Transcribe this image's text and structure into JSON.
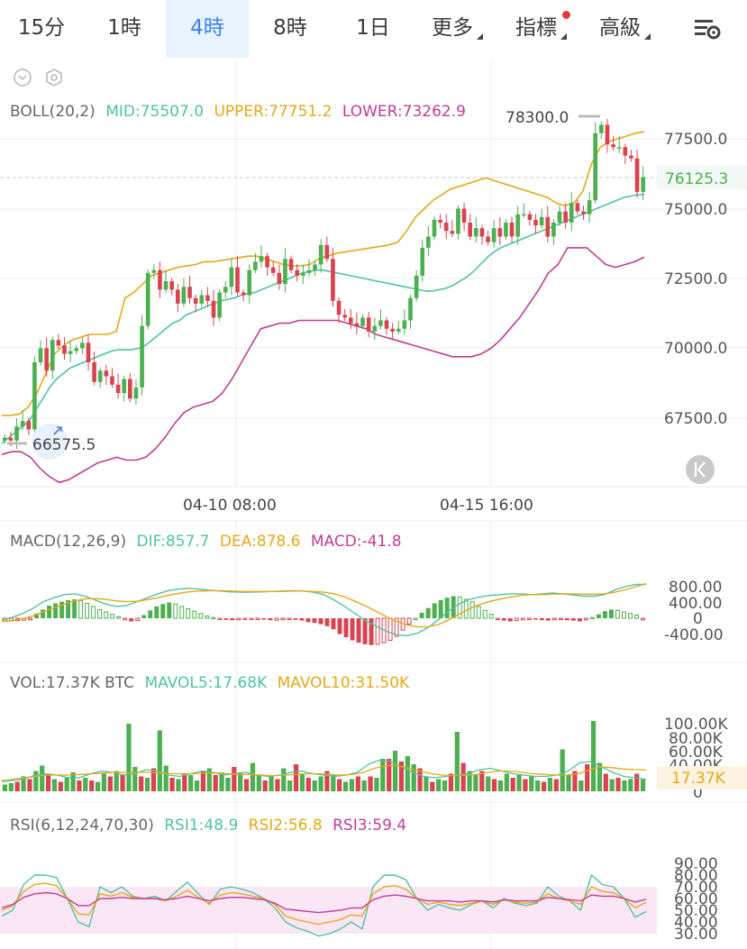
{
  "tabs": [
    {
      "label": "15分"
    },
    {
      "label": "1時"
    },
    {
      "label": "4時",
      "active": true
    },
    {
      "label": "8時"
    },
    {
      "label": "1日"
    },
    {
      "label": "更多"
    },
    {
      "label": "指標"
    },
    {
      "label": "高級"
    }
  ],
  "settings_icon": "chart-settings-icon",
  "toolbar_icons": [
    "chevron-down-icon",
    "hexagon-settings-icon"
  ],
  "boll": {
    "label": "BOLL(20,2)",
    "mid": "MID:75507.0",
    "upper": "UPPER:77751.2",
    "lower": "LOWER:73262.9"
  },
  "main_annotations": {
    "high": "78300.0",
    "low": "66575.5",
    "last": "76125.3"
  },
  "x_labels": [
    "04-10 08:00",
    "04-15 16:00"
  ],
  "macd": {
    "label": "MACD(12,26,9)",
    "dif": "DIF:857.7",
    "dea": "DEA:878.6",
    "macd": "MACD:-41.8"
  },
  "vol": {
    "label": "VOL:17.37K BTC",
    "mavol5": "MAVOL5:17.68K",
    "mavol10": "MAVOL10:31.50K",
    "last": "17.37K"
  },
  "rsi": {
    "label": "RSI(6,12,24,70,30)",
    "rsi1": "RSI1:48.9",
    "rsi2": "RSI2:56.8",
    "rsi3": "RSI3:59.4"
  },
  "colors": {
    "up": "#4caf50",
    "down": "#d9434f",
    "mid": "#4fc3a1",
    "upper": "#e6a817",
    "lower": "#c23c95",
    "accent": "#3b82f6"
  },
  "chart_data": [
    {
      "type": "candlestick",
      "title": "BOLL(20,2)",
      "ylim": [
        65000,
        79200
      ],
      "y_ticks": [
        67500,
        70000,
        72500,
        75000,
        77500
      ],
      "x_ticks": [
        "04-10 08:00",
        "04-15 16:00"
      ],
      "closes": [
        66800,
        66700,
        67200,
        67400,
        67100,
        69500,
        70000,
        69200,
        70300,
        70100,
        69800,
        69900,
        70000,
        70200,
        69500,
        68800,
        69200,
        69000,
        68700,
        68400,
        68900,
        68200,
        68600,
        70800,
        72700,
        72800,
        72100,
        72400,
        72100,
        71600,
        72200,
        71800,
        71600,
        71900,
        71700,
        71100,
        72000,
        72200,
        72900,
        72000,
        71900,
        72800,
        73100,
        73300,
        72900,
        72700,
        72300,
        73200,
        72800,
        72600,
        72700,
        72800,
        73000,
        73700,
        73200,
        71700,
        71200,
        71100,
        70900,
        70800,
        71100,
        70600,
        70800,
        71000,
        70700,
        70600,
        70700,
        71000,
        71800,
        72600,
        73600,
        74000,
        74600,
        74500,
        74200,
        74100,
        75000,
        74500,
        74000,
        74300,
        74000,
        73800,
        74300,
        74000,
        74500,
        74000,
        74800,
        74800,
        74600,
        74400,
        74700,
        74000,
        74500,
        74900,
        74500,
        75200,
        74900,
        74800,
        75300,
        77700,
        78000,
        77300,
        77200,
        77200,
        76900,
        76800,
        75600,
        76125.3
      ],
      "high_label": 78300.0,
      "low_label": 66575.5,
      "last": 76125.3,
      "series": [
        {
          "name": "MID",
          "last": 75507.0,
          "values": [
            66600,
            66800,
            67000,
            67200,
            67400,
            67800,
            68200,
            68600,
            68900,
            69100,
            69300,
            69400,
            69500,
            69600,
            69700,
            69800,
            69900,
            69950,
            69950,
            69950,
            70000,
            70100,
            70300,
            70500,
            70700,
            70900,
            71000,
            71200,
            71300,
            71400,
            71500,
            71600,
            71700,
            71750,
            71800,
            71900,
            71950,
            72000,
            72100,
            72200,
            72300,
            72400,
            72500,
            72600,
            72700,
            72750,
            72800,
            72800,
            72750,
            72700,
            72650,
            72600,
            72550,
            72500,
            72450,
            72400,
            72350,
            72300,
            72250,
            72200,
            72150,
            72100,
            72050,
            72050,
            72100,
            72150,
            72250,
            72400,
            72550,
            72750,
            73000,
            73250,
            73450,
            73600,
            73700,
            73800,
            73900,
            74000,
            74100,
            74200,
            74300,
            74400,
            74500,
            74600,
            74700,
            74800,
            74900,
            75000,
            75100,
            75200,
            75300,
            75400,
            75450,
            75500,
            75507.0
          ]
        },
        {
          "name": "UPPER",
          "last": 77751.2,
          "values": [
            67600,
            67600,
            67650,
            67900,
            68400,
            69100,
            69800,
            70100,
            70300,
            70400,
            70500,
            70500,
            70500,
            70600,
            71800,
            72000,
            72300,
            72600,
            72700,
            72800,
            72900,
            72950,
            73000,
            73100,
            73100,
            73150,
            73200,
            73250,
            73300,
            73300,
            73200,
            73100,
            73000,
            72950,
            72950,
            73000,
            73200,
            73300,
            73400,
            73450,
            73500,
            73550,
            73600,
            73650,
            73700,
            73800,
            74200,
            74700,
            75000,
            75300,
            75500,
            75700,
            75800,
            75900,
            76000,
            76100,
            76000,
            75900,
            75800,
            75700,
            75600,
            75500,
            75400,
            75200,
            75100,
            75200,
            75600,
            76600,
            77200,
            77400,
            77500,
            77600,
            77700,
            77751.2
          ]
        },
        {
          "name": "LOWER",
          "last": 73262.9,
          "values": [
            66200,
            66300,
            66300,
            66100,
            65700,
            65400,
            65200,
            65300,
            65500,
            65700,
            65900,
            66000,
            66100,
            66000,
            66000,
            66100,
            66400,
            66800,
            67300,
            67700,
            67900,
            68000,
            68100,
            68400,
            68900,
            69500,
            70100,
            70700,
            70800,
            70900,
            70900,
            71000,
            71000,
            71000,
            71000,
            71000,
            70900,
            70800,
            70700,
            70500,
            70400,
            70300,
            70200,
            70100,
            70000,
            69900,
            69800,
            69700,
            69700,
            69700,
            69800,
            70000,
            70300,
            70700,
            71100,
            71600,
            72100,
            72700,
            73000,
            73600,
            73600,
            73600,
            73300,
            73000,
            72900,
            73000,
            73100,
            73262.9
          ]
        }
      ]
    },
    {
      "type": "bar",
      "title": "MACD(12,26,9)",
      "ylim": [
        -700,
        1150
      ],
      "y_ticks": [
        800,
        400,
        0,
        -400
      ],
      "values": [
        -80,
        -70,
        -60,
        -50,
        -40,
        120,
        220,
        320,
        380,
        420,
        460,
        480,
        450,
        380,
        300,
        220,
        160,
        100,
        40,
        -40,
        -80,
        -60,
        80,
        200,
        300,
        360,
        400,
        360,
        300,
        240,
        180,
        120,
        60,
        20,
        -20,
        -40,
        -50,
        -40,
        -30,
        -20,
        -20,
        -30,
        -50,
        -50,
        -40,
        -30,
        -40,
        -60,
        -100,
        -120,
        -150,
        -200,
        -280,
        -400,
        -480,
        -560,
        -620,
        -660,
        -680,
        -660,
        -620,
        -560,
        -460,
        -300,
        -150,
        0,
        140,
        260,
        380,
        460,
        520,
        560,
        540,
        480,
        420,
        300,
        200,
        100,
        -20,
        -60,
        -80,
        -60,
        -40,
        -20,
        -30,
        -50,
        -60,
        -40,
        -30,
        -50,
        -60,
        -80,
        -40,
        20,
        100,
        180,
        220,
        200,
        160,
        120,
        80,
        -41.8
      ],
      "series": [
        {
          "name": "DIF",
          "last": 857.7,
          "values": [
            -40,
            20,
            120,
            250,
            420,
            520,
            600,
            620,
            560,
            460,
            360,
            300,
            320,
            420,
            520,
            620,
            700,
            740,
            760,
            740,
            710,
            690,
            670,
            660,
            660,
            670,
            680,
            690,
            700,
            690,
            660,
            600,
            460,
            300,
            120,
            -60,
            -200,
            -330,
            -420,
            -440,
            -380,
            -240,
            -40,
            180,
            360,
            480,
            540,
            580,
            600,
            620,
            620,
            600,
            620,
            640,
            620,
            590,
            560,
            560,
            600,
            720,
            800,
            860,
            857.7
          ]
        },
        {
          "name": "DEA",
          "last": 878.6,
          "values": [
            -80,
            -60,
            -10,
            60,
            160,
            260,
            360,
            440,
            490,
            500,
            480,
            440,
            420,
            430,
            470,
            520,
            580,
            630,
            670,
            690,
            700,
            700,
            690,
            680,
            680,
            680,
            680,
            680,
            690,
            690,
            680,
            660,
            620,
            540,
            430,
            310,
            180,
            40,
            -80,
            -170,
            -220,
            -220,
            -160,
            -40,
            100,
            240,
            350,
            430,
            490,
            540,
            580,
            600,
            600,
            610,
            620,
            620,
            610,
            610,
            620,
            660,
            720,
            800,
            878.6
          ]
        }
      ]
    },
    {
      "type": "bar",
      "title": "VOL:17.37K BTC",
      "ylim": [
        0,
        115000
      ],
      "y_ticks": [
        0,
        20000,
        40000,
        60000,
        80000,
        100000
      ],
      "values": [
        10000,
        12000,
        14000,
        22000,
        18000,
        30000,
        38000,
        26000,
        18000,
        14000,
        20000,
        28000,
        16000,
        20000,
        16000,
        14000,
        26000,
        22000,
        30000,
        24000,
        100000,
        36000,
        22000,
        20000,
        34000,
        90000,
        38000,
        20000,
        18000,
        26000,
        24000,
        16000,
        30000,
        34000,
        24000,
        28000,
        20000,
        36000,
        28000,
        18000,
        42000,
        24000,
        16000,
        22000,
        18000,
        34000,
        16000,
        40000,
        26000,
        20000,
        16000,
        22000,
        30000,
        24000,
        18000,
        14000,
        18000,
        22000,
        16000,
        22000,
        20000,
        48000,
        48000,
        60000,
        44000,
        52000,
        40000,
        34000,
        22000,
        14000,
        18000,
        16000,
        26000,
        88000,
        42000,
        30000,
        24000,
        30000,
        22000,
        18000,
        16000,
        26000,
        20000,
        24000,
        18000,
        22000,
        16000,
        14000,
        20000,
        18000,
        62000,
        24000,
        30000,
        16000,
        40000,
        104000,
        42000,
        26000,
        18000,
        20000,
        16000,
        18000,
        26000,
        17370
      ],
      "series": [
        {
          "name": "MAVOL5",
          "last": 17680,
          "values": [
            14000,
            16000,
            18000,
            24000,
            26000,
            24000,
            20000,
            20000,
            26000,
            30000,
            28000,
            24000,
            26000,
            32000,
            30000,
            24000,
            22000,
            26000,
            30000,
            28000,
            24000,
            26000,
            28000,
            24000,
            22000,
            24000,
            28000,
            30000,
            26000,
            24000,
            22000,
            24000,
            28000,
            40000,
            46000,
            44000,
            36000,
            28000,
            22000,
            20000,
            22000,
            24000,
            26000,
            32000,
            34000,
            30000,
            26000,
            24000,
            22000,
            22000,
            24000,
            30000,
            42000,
            44000,
            36000,
            28000,
            22000,
            20000,
            17680
          ]
        },
        {
          "name": "MAVOL10",
          "last": 31500,
          "values": [
            16000,
            18000,
            20000,
            22000,
            24000,
            24000,
            24000,
            25000,
            26000,
            27000,
            28000,
            28000,
            28000,
            28000,
            27000,
            26000,
            26000,
            26000,
            27000,
            27000,
            26000,
            25000,
            25000,
            24000,
            23000,
            24000,
            25000,
            26000,
            26000,
            25000,
            24000,
            25000,
            28000,
            34000,
            38000,
            38000,
            34000,
            30000,
            26000,
            24000,
            23000,
            24000,
            25000,
            28000,
            30000,
            30000,
            28000,
            26000,
            25000,
            24000,
            24000,
            26000,
            32000,
            36000,
            35000,
            33000,
            32000,
            31500
          ]
        }
      ]
    },
    {
      "type": "line",
      "title": "RSI(6,12,24,70,30)",
      "ylim": [
        22,
        95
      ],
      "y_ticks": [
        30,
        40,
        50,
        60,
        70,
        80,
        90
      ],
      "bands": [
        30,
        70
      ],
      "series": [
        {
          "name": "RSI1",
          "last": 48.9,
          "values": [
            45,
            50,
            72,
            80,
            80,
            78,
            60,
            40,
            36,
            70,
            65,
            70,
            62,
            60,
            62,
            58,
            66,
            74,
            64,
            55,
            68,
            70,
            68,
            65,
            60,
            52,
            40,
            35,
            32,
            28,
            30,
            34,
            40,
            34,
            70,
            80,
            80,
            76,
            60,
            50,
            55,
            52,
            50,
            55,
            58,
            52,
            60,
            56,
            54,
            56,
            70,
            62,
            58,
            50,
            80,
            72,
            70,
            60,
            44,
            48.9
          ]
        },
        {
          "name": "RSI2",
          "last": 56.8,
          "values": [
            50,
            54,
            66,
            72,
            73,
            71,
            60,
            47,
            46,
            64,
            62,
            65,
            61,
            60,
            60,
            58,
            62,
            67,
            61,
            56,
            63,
            65,
            64,
            62,
            60,
            55,
            45,
            42,
            40,
            38,
            40,
            42,
            46,
            45,
            64,
            70,
            71,
            68,
            60,
            55,
            57,
            55,
            54,
            56,
            58,
            55,
            59,
            57,
            56,
            57,
            64,
            60,
            58,
            55,
            70,
            66,
            65,
            60,
            52,
            56.8
          ]
        },
        {
          "name": "RSI3",
          "last": 59.4,
          "values": [
            52,
            55,
            61,
            64,
            65,
            64,
            60,
            54,
            54,
            60,
            60,
            61,
            60,
            60,
            60,
            59,
            60,
            62,
            60,
            58,
            60,
            61,
            61,
            60,
            59,
            56,
            51,
            50,
            49,
            48,
            49,
            50,
            52,
            52,
            59,
            62,
            63,
            62,
            60,
            58,
            58,
            58,
            57,
            58,
            58,
            57,
            59,
            58,
            58,
            58,
            61,
            60,
            59,
            58,
            63,
            62,
            62,
            60,
            57,
            59.4
          ]
        }
      ]
    }
  ]
}
